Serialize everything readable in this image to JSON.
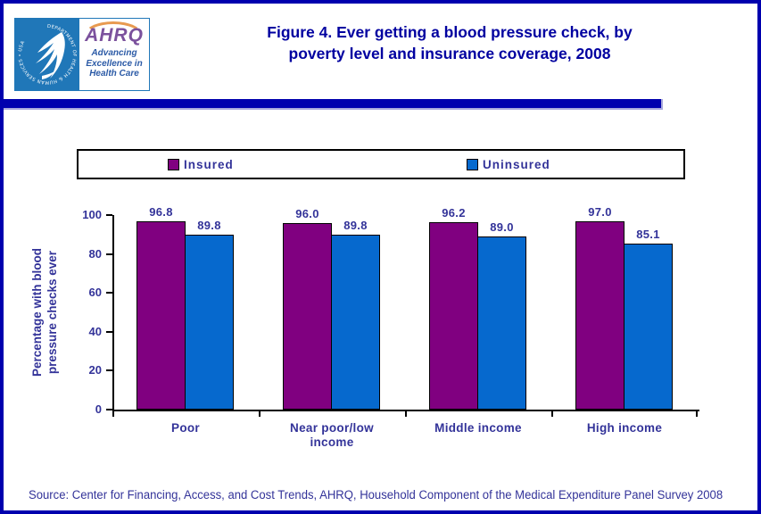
{
  "header": {
    "title_line1": "Figure 4. Ever getting a blood pressure check, by",
    "title_line2": "poverty level and insurance coverage, 2008",
    "logo": {
      "hhs_ring_text": "DEPARTMENT OF HEALTH & HUMAN SERVICES • USA",
      "ahrq_acronym": "AHRQ",
      "tagline_line1": "Advancing",
      "tagline_line2": "Excellence in",
      "tagline_line3": "Health Care"
    }
  },
  "legend": {
    "items": [
      {
        "label": "Insured",
        "color": "#800080"
      },
      {
        "label": "Uninsured",
        "color": "#0669CE"
      }
    ]
  },
  "chart_data": {
    "type": "bar",
    "title": "Figure 4. Ever getting a blood pressure check, by poverty level and insurance coverage, 2008",
    "categories": [
      "Poor",
      "Near poor/low income",
      "Middle income",
      "High income"
    ],
    "series": [
      {
        "name": "Insured",
        "color": "#800080",
        "values": [
          96.8,
          96.0,
          96.2,
          97.0
        ]
      },
      {
        "name": "Uninsured",
        "color": "#0669CE",
        "values": [
          89.8,
          89.8,
          89.0,
          85.1
        ]
      }
    ],
    "xlabel": "",
    "ylabel": "Percentage with blood pressure checks ever",
    "ylabel_line1": "Percentage with blood",
    "ylabel_line2": "pressure checks ever",
    "ylim": [
      0,
      100
    ],
    "yticks": [
      0,
      20,
      40,
      60,
      80,
      100
    ],
    "grid": false,
    "legend_position": "top",
    "value_labels": true,
    "value_label_decimals": 1
  },
  "colors": {
    "page_border": "#0000AE",
    "divider_bar": "#0000AE",
    "title_text": "#0000A0",
    "chart_text": "#333399",
    "bar_insured": "#800080",
    "bar_uninsured": "#0669CE"
  },
  "footer": {
    "source": "Source: Center for Financing, Access, and Cost Trends, AHRQ, Household Component of the Medical Expenditure Panel Survey 2008"
  }
}
